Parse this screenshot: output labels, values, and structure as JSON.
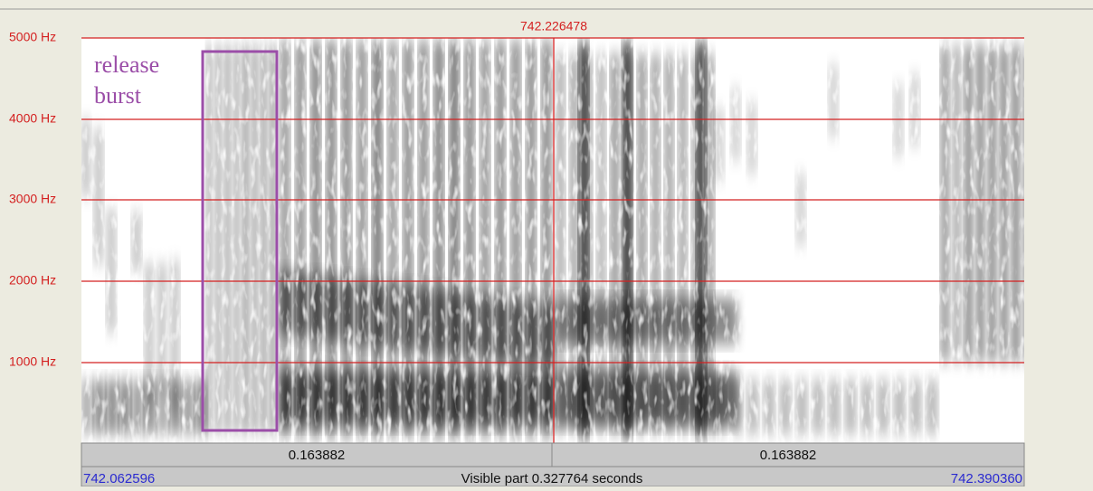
{
  "window": {
    "cursor_time": "742.226478",
    "frequency_labels": [
      "5000 Hz",
      "4000 Hz",
      "3000 Hz",
      "2000 Hz",
      "1000 Hz"
    ],
    "annotation": [
      "release",
      "burst"
    ],
    "segments": [
      "0.163882",
      "0.163882"
    ],
    "start_time": "742.062596",
    "visible_part": "Visible part 0.327764 seconds",
    "end_time": "742.390360"
  }
}
